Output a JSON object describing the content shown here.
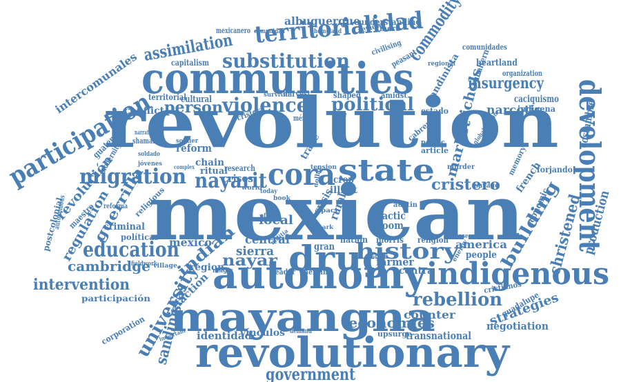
{
  "theme": {
    "word_color": "#4a7fb5",
    "background": "#ffffff"
  },
  "words": [
    "revolution",
    "mexican",
    "communities",
    "autonomy",
    "mayangna",
    "revolutionary",
    "drug",
    "indigenous",
    "state",
    "cora",
    "development",
    "participation",
    "territorialidad",
    "substitution",
    "assimilation",
    "commodity",
    "violence",
    "political",
    "migration",
    "nayarit",
    "education",
    "history",
    "insurgency",
    "huichols",
    "market",
    "person",
    "rebellion",
    "university",
    "sandinistas",
    "intervention",
    "cambridge",
    "cristero",
    "building",
    "christened",
    "production",
    "government",
    "identidad",
    "economies",
    "strategies",
    "negotiation",
    "transnational",
    "albuquerque",
    "understanding",
    "intercomunales",
    "revolución",
    "regulation",
    "guerrilla",
    "indian",
    "local",
    "conflict",
    "reform",
    "chain",
    "crises",
    "migration",
    "nayar",
    "sierra",
    "central",
    "mexico",
    "políticas",
    "criminal",
    "region",
    "faction",
    "counter",
    "contra",
    "america",
    "people",
    "farmer",
    "narcotic",
    "caciquismo",
    "costumbre",
    "indígena",
    "forjando",
    "french",
    "economic",
    "memory",
    "murder",
    "politic",
    "article",
    "cabrera",
    "globalización",
    "sandinista",
    "subaltern",
    "heartland",
    "organization",
    "comunidades",
    "regional",
    "peasant",
    "civilising",
    "capitalism",
    "mexicanero",
    "comunidad",
    "homeland",
    "review",
    "more",
    "territorial",
    "cultural",
    "survival",
    "harvest",
    "shaped",
    "rebelión",
    "amidst",
    "estado",
    "mérida",
    "cristera",
    "narrative",
    "shaman",
    "soldado",
    "soldier",
    "jóvenes",
    "complex",
    "ritual",
    "research",
    "trade",
    "illicit",
    "rural",
    "crisis",
    "tactic",
    "boom",
    "gran",
    "nation",
    "religion",
    "alliance",
    "security",
    "cristianos",
    "guadalupe",
    "upsurge",
    "vínculos",
    "demand",
    "corporation",
    "important",
    "participación",
    "fieldwork",
    "village",
    "magic",
    "leader",
    "heroin",
    "postcolonial",
    "maestro",
    "religious",
    "reforma",
    "guatemala",
    "modernity",
    "autonomous",
    "savage",
    "energy",
    "austin",
    "morris",
    "dollar",
    "pact",
    "world",
    "crop",
    "tension",
    "context",
    "mark",
    "cacique",
    "militia",
    "book",
    "official",
    "today"
  ]
}
